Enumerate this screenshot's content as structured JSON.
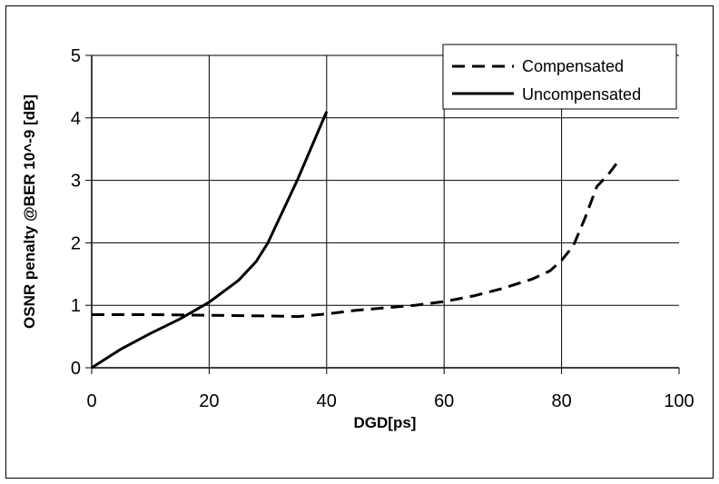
{
  "chart_data": {
    "type": "line",
    "title": "",
    "xlabel": "DGD[ps]",
    "ylabel": "OSNR penalty @BER 10^-9 [dB]",
    "xlim": [
      0,
      100
    ],
    "ylim": [
      0,
      5
    ],
    "xticks": [
      "0",
      "20",
      "40",
      "60",
      "80",
      "100"
    ],
    "yticks": [
      "0",
      "1",
      "2",
      "3",
      "4",
      "5"
    ],
    "grid": true,
    "legend_position": "top-right",
    "series": [
      {
        "name": "Compensated",
        "style": "dashed",
        "color": "#000000",
        "x": [
          0,
          10,
          20,
          30,
          35,
          40,
          45,
          50,
          55,
          60,
          65,
          70,
          75,
          78,
          80,
          82,
          84,
          86,
          88,
          90
        ],
        "y": [
          0.85,
          0.85,
          0.84,
          0.83,
          0.82,
          0.86,
          0.92,
          0.96,
          1.0,
          1.06,
          1.15,
          1.27,
          1.42,
          1.55,
          1.72,
          1.95,
          2.4,
          2.9,
          3.1,
          3.35
        ]
      },
      {
        "name": "Uncompensated",
        "style": "solid",
        "color": "#000000",
        "x": [
          0,
          5,
          10,
          15,
          20,
          25,
          28,
          30,
          35,
          40
        ],
        "y": [
          0.0,
          0.3,
          0.55,
          0.78,
          1.05,
          1.4,
          1.7,
          2.0,
          3.0,
          4.1
        ]
      }
    ]
  }
}
